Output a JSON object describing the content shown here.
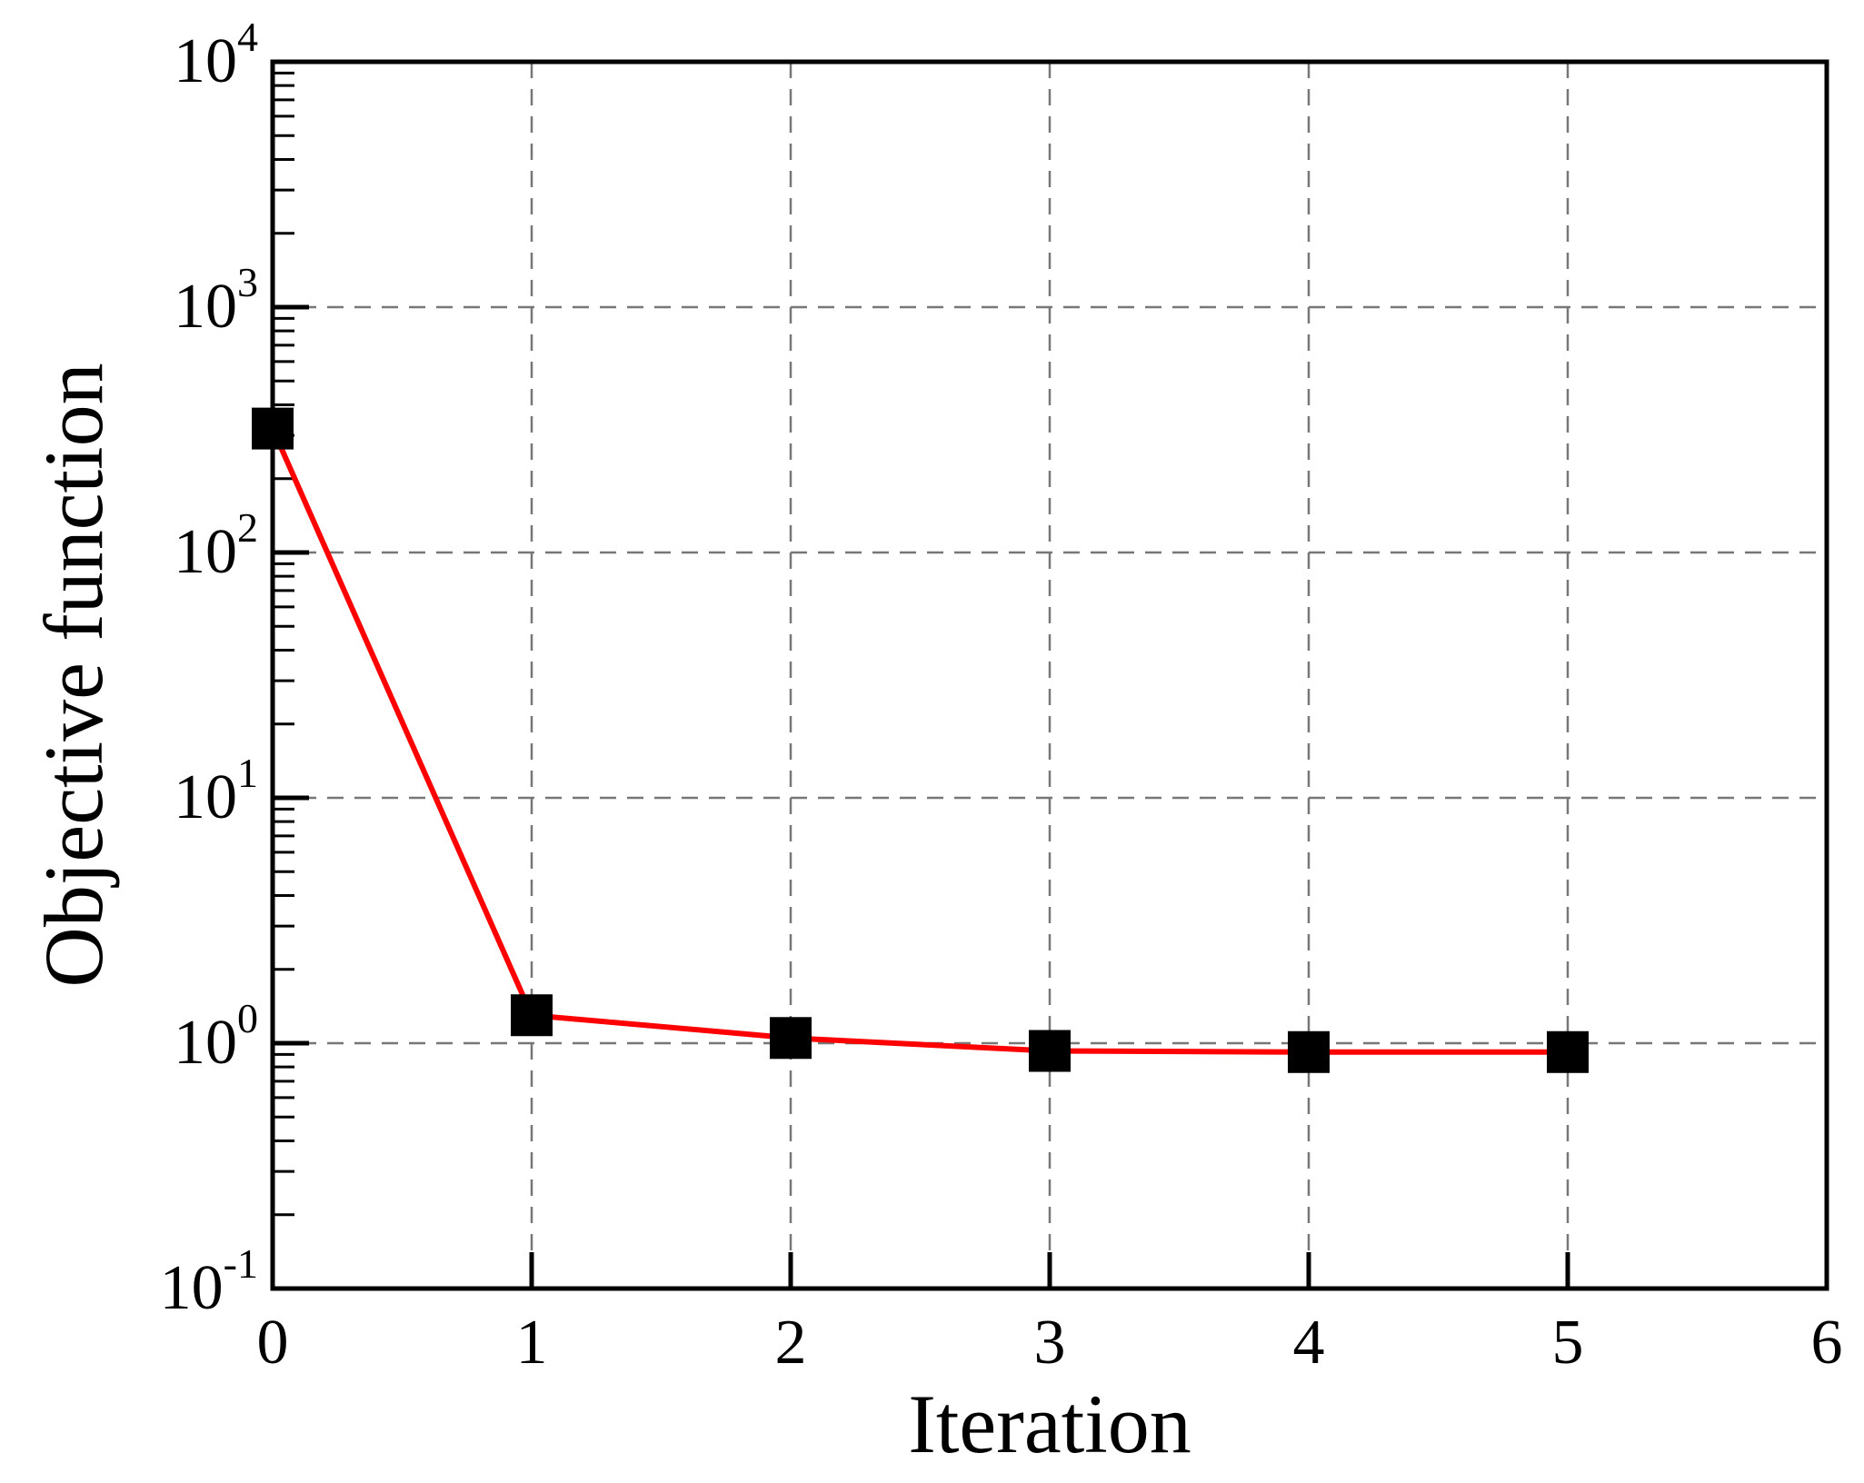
{
  "chart_data": {
    "type": "line",
    "title": "",
    "xlabel": "Iteration",
    "ylabel": "Objective function",
    "xlim": [
      0,
      6
    ],
    "ylim": [
      0.1,
      10000
    ],
    "yscale": "log",
    "grid": true,
    "xticks": [
      {
        "value": 0,
        "label": "0"
      },
      {
        "value": 1,
        "label": "1"
      },
      {
        "value": 2,
        "label": "2"
      },
      {
        "value": 3,
        "label": "3"
      },
      {
        "value": 4,
        "label": "4"
      },
      {
        "value": 5,
        "label": "5"
      },
      {
        "value": 6,
        "label": "6"
      }
    ],
    "yticks": [
      {
        "value": 0.1,
        "base": "10",
        "exp": "-1"
      },
      {
        "value": 1,
        "base": "10",
        "exp": "0"
      },
      {
        "value": 10,
        "base": "10",
        "exp": "1"
      },
      {
        "value": 100,
        "base": "10",
        "exp": "2"
      },
      {
        "value": 1000,
        "base": "10",
        "exp": "3"
      },
      {
        "value": 10000,
        "base": "10",
        "exp": "4"
      }
    ],
    "series": [
      {
        "x": [
          0,
          1,
          2,
          3,
          4,
          5
        ],
        "y": [
          320,
          1.3,
          1.05,
          0.93,
          0.92,
          0.92
        ],
        "line_color": "#ff0000",
        "marker": "square",
        "marker_color": "#000000"
      }
    ]
  }
}
